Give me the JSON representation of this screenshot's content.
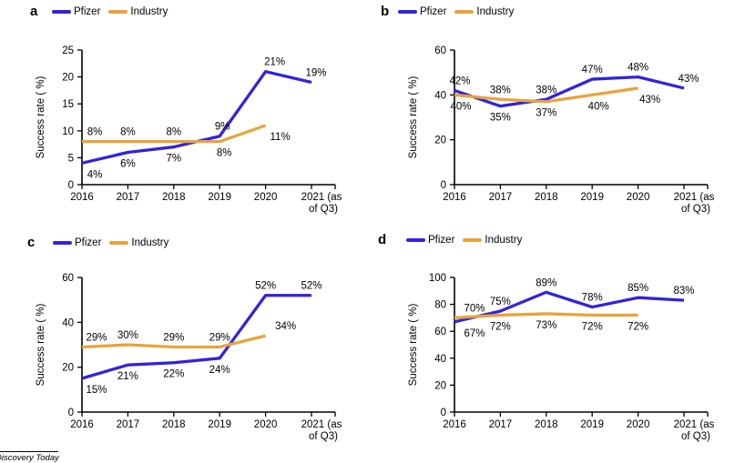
{
  "colors": {
    "pfizer": "#3123DC",
    "industry": "#E8A33C",
    "axis": "#000000",
    "background": "#ffffff"
  },
  "legend": {
    "pfizer": "Pfizer",
    "industry": "Industry"
  },
  "footer": {
    "source_label": "Discovery Today"
  },
  "chart_data": [
    {
      "panel": "a",
      "type": "line",
      "title": "",
      "xlabel": "",
      "ylabel": "Success rate ( %)",
      "categories": [
        "2016",
        "2017",
        "2018",
        "2019",
        "2020",
        "2021 (as of Q3)"
      ],
      "x_tick_display": [
        "2016",
        "2017",
        "2018",
        "2019",
        "2020",
        "2021 (as\nof Q3)"
      ],
      "ylim": [
        0,
        25
      ],
      "yticks": [
        0,
        5,
        10,
        15,
        20,
        25
      ],
      "grid": false,
      "legend_position": "top-left",
      "series": [
        {
          "name": "Pfizer",
          "color": "#3123DC",
          "values": [
            4,
            6,
            7,
            9,
            21,
            19
          ],
          "labels": [
            "4%",
            "6%",
            "7%",
            "9%",
            "21%",
            "19%"
          ],
          "label_pos": [
            "below",
            "below",
            "below",
            "above",
            "above",
            "above"
          ],
          "label_dx": [
            14,
            0,
            0,
            3,
            10,
            5
          ]
        },
        {
          "name": "Industry",
          "color": "#E8A33C",
          "values": [
            8,
            8,
            8,
            8,
            11
          ],
          "labels": [
            "8%",
            "8%",
            "8%",
            "8%",
            "11%"
          ],
          "label_pos": [
            "above",
            "above",
            "above",
            "below",
            "below"
          ],
          "label_dx": [
            14,
            0,
            0,
            5,
            16
          ]
        }
      ]
    },
    {
      "panel": "b",
      "type": "line",
      "title": "",
      "xlabel": "",
      "ylabel": "Success rate ( %)",
      "categories": [
        "2016",
        "2017",
        "2018",
        "2019",
        "2020",
        "2021 (as of Q3)"
      ],
      "x_tick_display": [
        "2016",
        "2017",
        "2018",
        "2019",
        "2020",
        "2021 (as\nof Q3)"
      ],
      "ylim": [
        0,
        60
      ],
      "yticks": [
        0,
        20,
        40,
        60
      ],
      "grid": false,
      "legend_position": "top-left",
      "series": [
        {
          "name": "Pfizer",
          "color": "#3123DC",
          "values": [
            42,
            35,
            38,
            47,
            48,
            43
          ],
          "labels": [
            "42%",
            "35%",
            "38%",
            "47%",
            "48%",
            "43%"
          ],
          "label_pos": [
            "above",
            "below",
            "above",
            "above",
            "above",
            "above"
          ],
          "label_dx": [
            6,
            0,
            0,
            0,
            0,
            5
          ]
        },
        {
          "name": "Industry",
          "color": "#E8A33C",
          "values": [
            40,
            38,
            37,
            40,
            43
          ],
          "labels": [
            "40%",
            "38%",
            "37%",
            "40%",
            "43%"
          ],
          "label_pos": [
            "below",
            "above",
            "below",
            "below",
            "below"
          ],
          "label_dx": [
            7,
            0,
            0,
            7,
            13
          ]
        }
      ]
    },
    {
      "panel": "c",
      "type": "line",
      "title": "",
      "xlabel": "",
      "ylabel": "Success rate ( %)",
      "categories": [
        "2016",
        "2017",
        "2018",
        "2019",
        "2020",
        "2021 (as of Q3)"
      ],
      "x_tick_display": [
        "2016",
        "2017",
        "2018",
        "2019",
        "2020",
        "2021 (as\nof Q3)"
      ],
      "ylim": [
        0,
        60
      ],
      "yticks": [
        0,
        20,
        40,
        60
      ],
      "grid": false,
      "legend_position": "top-left",
      "series": [
        {
          "name": "Pfizer",
          "color": "#3123DC",
          "values": [
            15,
            21,
            22,
            24,
            52,
            52
          ],
          "labels": [
            "15%",
            "21%",
            "22%",
            "24%",
            "52%",
            "52%"
          ],
          "label_pos": [
            "below",
            "below",
            "below",
            "below",
            "above",
            "above"
          ],
          "label_dx": [
            16,
            0,
            0,
            0,
            0,
            0
          ]
        },
        {
          "name": "Industry",
          "color": "#E8A33C",
          "values": [
            29,
            30,
            29,
            29,
            34
          ],
          "labels": [
            "29%",
            "30%",
            "29%",
            "29%",
            "34%"
          ],
          "label_pos": [
            "above",
            "above",
            "above",
            "above",
            "above"
          ],
          "label_dx": [
            16,
            0,
            0,
            0,
            22
          ]
        }
      ]
    },
    {
      "panel": "d",
      "type": "line",
      "title": "",
      "xlabel": "",
      "ylabel": "Success rate ( %)",
      "categories": [
        "2016",
        "2017",
        "2018",
        "2019",
        "2020",
        "2021 (as of Q3)"
      ],
      "x_tick_display": [
        "2016",
        "2017",
        "2018",
        "2019",
        "2020",
        "2021 (as\nof Q3)"
      ],
      "ylim": [
        0,
        100
      ],
      "yticks": [
        0,
        20,
        40,
        60,
        80,
        100
      ],
      "grid": false,
      "legend_position": "top-left",
      "series": [
        {
          "name": "Pfizer",
          "color": "#3123DC",
          "values": [
            67,
            75,
            89,
            78,
            85,
            83
          ],
          "labels": [
            "67%",
            "75%",
            "89%",
            "78%",
            "85%",
            "83%"
          ],
          "label_pos": [
            "below",
            "above",
            "above",
            "above",
            "above",
            "above"
          ],
          "label_dx": [
            22,
            0,
            0,
            0,
            0,
            0
          ]
        },
        {
          "name": "Industry",
          "color": "#E8A33C",
          "values": [
            70,
            72,
            73,
            72,
            72
          ],
          "labels": [
            "70%",
            "72%",
            "73%",
            "72%",
            "72%"
          ],
          "label_pos": [
            "above",
            "below",
            "below",
            "below",
            "below"
          ],
          "label_dx": [
            22,
            0,
            0,
            0,
            0
          ]
        }
      ]
    }
  ]
}
